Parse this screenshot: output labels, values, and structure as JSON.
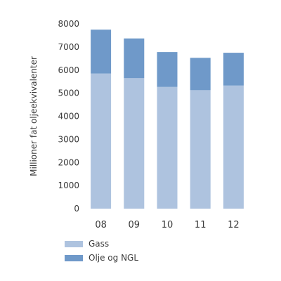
{
  "chart_data": {
    "type": "bar",
    "stacked": true,
    "categories": [
      "08",
      "09",
      "10",
      "11",
      "12"
    ],
    "series": [
      {
        "name": "Gass",
        "values": [
          5850,
          5650,
          5270,
          5130,
          5330
        ],
        "color": "#aec3df"
      },
      {
        "name": "Olje og NGL",
        "values": [
          1900,
          1720,
          1510,
          1400,
          1420
        ],
        "color": "#6f99c9"
      }
    ],
    "title": "",
    "xlabel": "",
    "ylabel": "Millioner fat oljeekvivalenter",
    "ylim": [
      0,
      8000
    ],
    "yticks": [
      0,
      1000,
      2000,
      3000,
      4000,
      5000,
      6000,
      7000,
      8000
    ],
    "grid": false,
    "legend_position": "bottom-left"
  }
}
